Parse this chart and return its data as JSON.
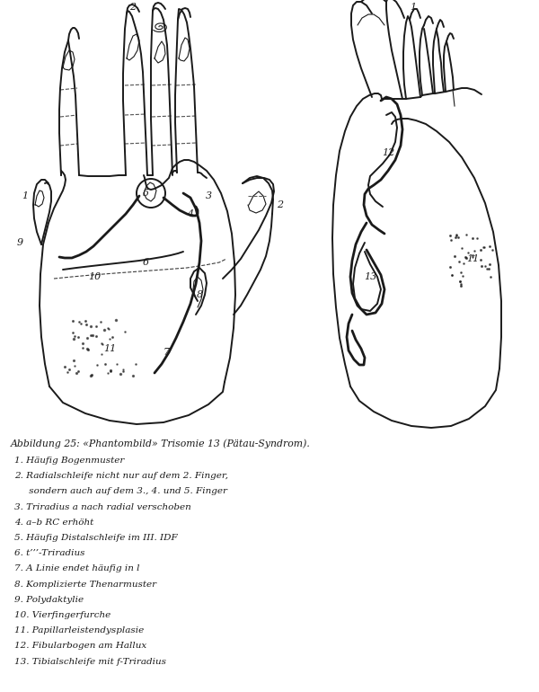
{
  "bg_color": "#ffffff",
  "line_color": "#1a1a1a",
  "caption_title": "Abbildung 25: «Phantombild» Trisomie 13 (Pätau-Syndrom).",
  "legend_items": [
    "1. Häufig Bogenmuster",
    "2. Radialschleife nicht nur auf dem 2. Finger,",
    "     sondern auch auf dem 3., 4. und 5. Finger",
    "3. Triradius a nach radial verschoben",
    "4. a–b RC erhöht",
    "5. Häufig Distalschleife im III. IDF",
    "6. t’’’-Triradius",
    "7. A Linie endet häufig in l",
    "8. Komplizierte Thenarmuster",
    "9. Polydaktylie",
    "10. Vierfingerfurche",
    "11. Papillarleistendysplasie",
    "12. Fibularbogen am Hallux",
    "13. Tibialschleife mit f-Triradius"
  ],
  "figsize": [
    6.0,
    7.7
  ],
  "dpi": 100
}
